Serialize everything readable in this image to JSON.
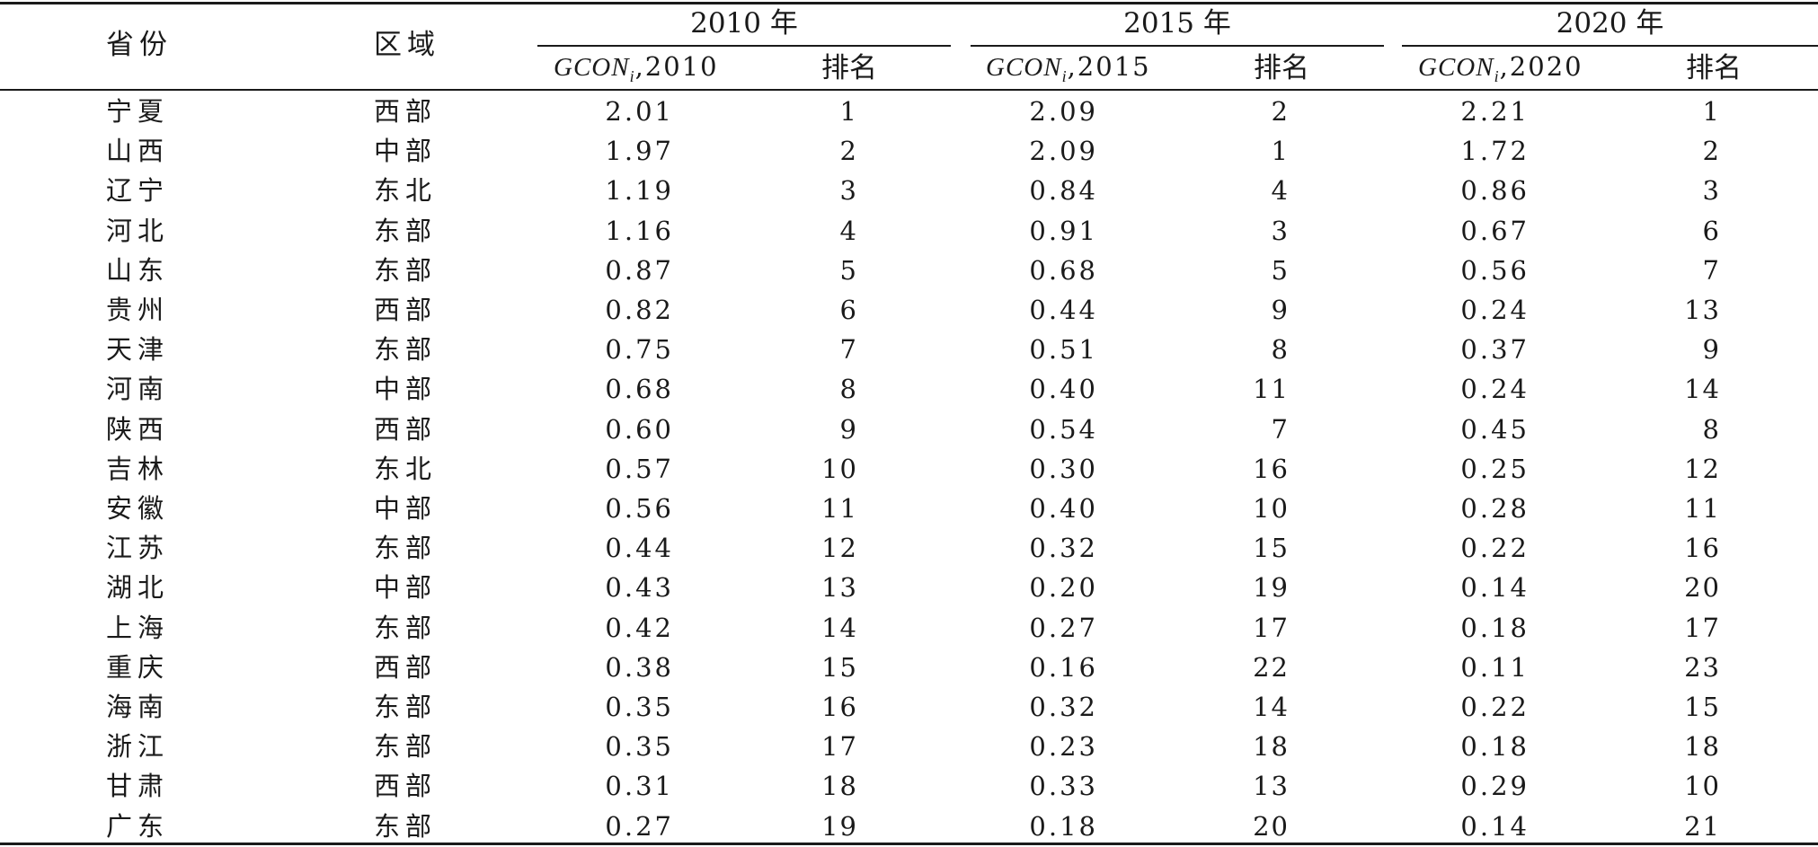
{
  "table": {
    "headers": {
      "province": "省份",
      "region": "区域",
      "groups": [
        {
          "year_label": "2010 年",
          "value_col": "GCON",
          "value_sub": "i",
          "value_year": ",2010",
          "rank_col": "排名"
        },
        {
          "year_label": "2015 年",
          "value_col": "GCON",
          "value_sub": "i",
          "value_year": ",2015",
          "rank_col": "排名"
        },
        {
          "year_label": "2020 年",
          "value_col": "GCON",
          "value_sub": "i",
          "value_year": ",2020",
          "rank_col": "排名"
        }
      ]
    },
    "rows": [
      {
        "province": "宁夏",
        "region": "西部",
        "v2010": "2.01",
        "r2010": "1",
        "v2015": "2.09",
        "r2015": "2",
        "v2020": "2.21",
        "r2020": "1"
      },
      {
        "province": "山西",
        "region": "中部",
        "v2010": "1.97",
        "r2010": "2",
        "v2015": "2.09",
        "r2015": "1",
        "v2020": "1.72",
        "r2020": "2"
      },
      {
        "province": "辽宁",
        "region": "东北",
        "v2010": "1.19",
        "r2010": "3",
        "v2015": "0.84",
        "r2015": "4",
        "v2020": "0.86",
        "r2020": "3"
      },
      {
        "province": "河北",
        "region": "东部",
        "v2010": "1.16",
        "r2010": "4",
        "v2015": "0.91",
        "r2015": "3",
        "v2020": "0.67",
        "r2020": "6"
      },
      {
        "province": "山东",
        "region": "东部",
        "v2010": "0.87",
        "r2010": "5",
        "v2015": "0.68",
        "r2015": "5",
        "v2020": "0.56",
        "r2020": "7"
      },
      {
        "province": "贵州",
        "region": "西部",
        "v2010": "0.82",
        "r2010": "6",
        "v2015": "0.44",
        "r2015": "9",
        "v2020": "0.24",
        "r2020": "13"
      },
      {
        "province": "天津",
        "region": "东部",
        "v2010": "0.75",
        "r2010": "7",
        "v2015": "0.51",
        "r2015": "8",
        "v2020": "0.37",
        "r2020": "9"
      },
      {
        "province": "河南",
        "region": "中部",
        "v2010": "0.68",
        "r2010": "8",
        "v2015": "0.40",
        "r2015": "11",
        "v2020": "0.24",
        "r2020": "14"
      },
      {
        "province": "陕西",
        "region": "西部",
        "v2010": "0.60",
        "r2010": "9",
        "v2015": "0.54",
        "r2015": "7",
        "v2020": "0.45",
        "r2020": "8"
      },
      {
        "province": "吉林",
        "region": "东北",
        "v2010": "0.57",
        "r2010": "10",
        "v2015": "0.30",
        "r2015": "16",
        "v2020": "0.25",
        "r2020": "12"
      },
      {
        "province": "安徽",
        "region": "中部",
        "v2010": "0.56",
        "r2010": "11",
        "v2015": "0.40",
        "r2015": "10",
        "v2020": "0.28",
        "r2020": "11"
      },
      {
        "province": "江苏",
        "region": "东部",
        "v2010": "0.44",
        "r2010": "12",
        "v2015": "0.32",
        "r2015": "15",
        "v2020": "0.22",
        "r2020": "16"
      },
      {
        "province": "湖北",
        "region": "中部",
        "v2010": "0.43",
        "r2010": "13",
        "v2015": "0.20",
        "r2015": "19",
        "v2020": "0.14",
        "r2020": "20"
      },
      {
        "province": "上海",
        "region": "东部",
        "v2010": "0.42",
        "r2010": "14",
        "v2015": "0.27",
        "r2015": "17",
        "v2020": "0.18",
        "r2020": "17"
      },
      {
        "province": "重庆",
        "region": "西部",
        "v2010": "0.38",
        "r2010": "15",
        "v2015": "0.16",
        "r2015": "22",
        "v2020": "0.11",
        "r2020": "23"
      },
      {
        "province": "海南",
        "region": "东部",
        "v2010": "0.35",
        "r2010": "16",
        "v2015": "0.32",
        "r2015": "14",
        "v2020": "0.22",
        "r2020": "15"
      },
      {
        "province": "浙江",
        "region": "东部",
        "v2010": "0.35",
        "r2010": "17",
        "v2015": "0.23",
        "r2015": "18",
        "v2020": "0.18",
        "r2020": "18"
      },
      {
        "province": "甘肃",
        "region": "西部",
        "v2010": "0.31",
        "r2010": "18",
        "v2015": "0.33",
        "r2015": "13",
        "v2020": "0.29",
        "r2020": "10"
      },
      {
        "province": "广东",
        "region": "东部",
        "v2010": "0.27",
        "r2010": "19",
        "v2015": "0.18",
        "r2015": "20",
        "v2020": "0.14",
        "r2020": "21"
      }
    ]
  }
}
